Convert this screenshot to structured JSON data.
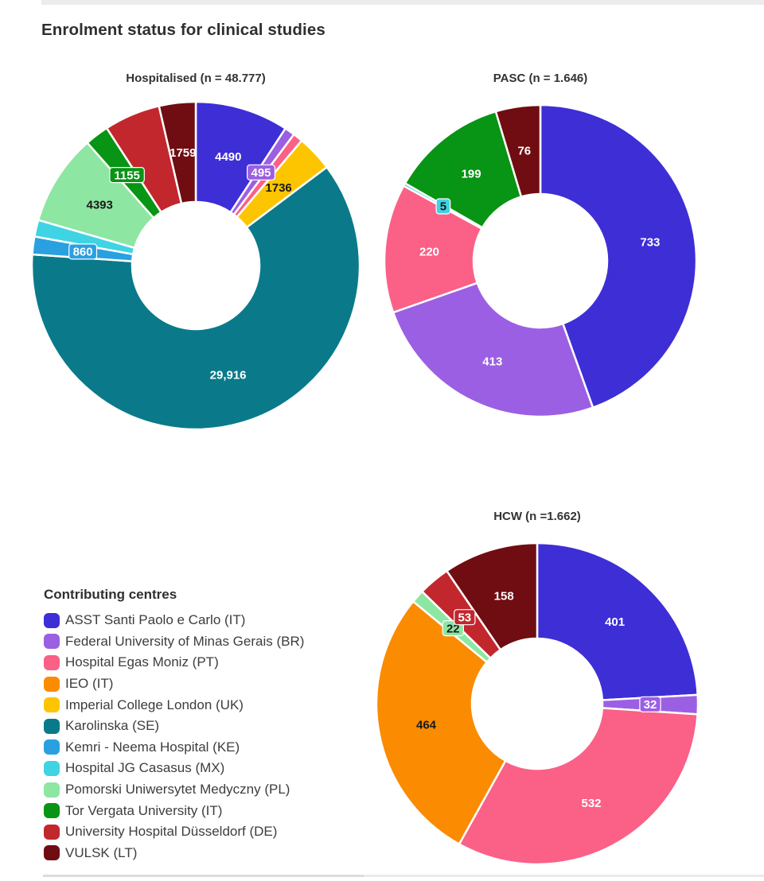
{
  "page": {
    "title": "Enrolment status for clinical studies"
  },
  "legend": {
    "title": "Contributing centres",
    "items": [
      {
        "label": "ASST Santi Paolo e Carlo (IT)",
        "color": "#3e2ed6"
      },
      {
        "label": "Federal University of Minas Gerais (BR)",
        "color": "#9b5fe3"
      },
      {
        "label": "Hospital Egas Moniz (PT)",
        "color": "#fb6087"
      },
      {
        "label": "IEO (IT)",
        "color": "#fb8b00"
      },
      {
        "label": "Imperial College London (UK)",
        "color": "#fdc500"
      },
      {
        "label": "Karolinska (SE)",
        "color": "#0a7a8a"
      },
      {
        "label": "Kemri - Neema Hospital (KE)",
        "color": "#29a0e0"
      },
      {
        "label": "Hospital JG Casasus (MX)",
        "color": "#3fd4e4"
      },
      {
        "label": "Pomorski Uniwersytet Medyczny (PL)",
        "color": "#8de6a2"
      },
      {
        "label": "Tor Vergata University (IT)",
        "color": "#089414"
      },
      {
        "label": "University Hospital Düsseldorf (DE)",
        "color": "#c2272d"
      },
      {
        "label": "VULSK (LT)",
        "color": "#700d12"
      }
    ]
  },
  "chart_data": [
    {
      "type": "pie",
      "donut": true,
      "title": "Hospitalised (n = 48.777)",
      "n_total": 48777,
      "legend_position": "bottom-left",
      "series": [
        {
          "name": "ASST Santi Paolo e Carlo (IT)",
          "value": 4490,
          "label": "4490",
          "label_color": "#ffffff"
        },
        {
          "name": "Federal University of Minas Gerais (BR)",
          "value": 495,
          "label": "495",
          "label_color": "#ffffff",
          "chip": true
        },
        {
          "name": "Hospital Egas Moniz (PT)",
          "value": 473,
          "label": "",
          "estimated": true
        },
        {
          "name": "Imperial College London (UK)",
          "value": 1736,
          "label": "1736",
          "label_color": "#1a1a1a"
        },
        {
          "name": "Karolinska (SE)",
          "value": 29916,
          "label": "29,916",
          "label_color": "#ffffff"
        },
        {
          "name": "Kemri - Neema Hospital (KE)",
          "value": 860,
          "label": "860",
          "label_color": "#ffffff",
          "chip": true
        },
        {
          "name": "Hospital JG Casasus (MX)",
          "value": 800,
          "label": "",
          "estimated": true
        },
        {
          "name": "Pomorski Uniwersytet Medyczny (PL)",
          "value": 4393,
          "label": "4393",
          "label_color": "#1a1a1a"
        },
        {
          "name": "Tor Vergata University (IT)",
          "value": 1155,
          "label": "1155",
          "label_color": "#ffffff",
          "chip": true
        },
        {
          "name": "University Hospital Düsseldorf (DE)",
          "value": 2700,
          "label": "",
          "estimated": true
        },
        {
          "name": "VULSK (LT)",
          "value": 1759,
          "label": "1759",
          "label_color": "#ffffff"
        }
      ]
    },
    {
      "type": "pie",
      "donut": true,
      "title": "PASC (n = 1.646)",
      "n_total": 1646,
      "series": [
        {
          "name": "ASST Santi Paolo e Carlo (IT)",
          "value": 733,
          "label": "733",
          "label_color": "#ffffff"
        },
        {
          "name": "Federal University of Minas Gerais (BR)",
          "value": 413,
          "label": "413",
          "label_color": "#ffffff"
        },
        {
          "name": "Hospital Egas Moniz (PT)",
          "value": 220,
          "label": "220",
          "label_color": "#ffffff"
        },
        {
          "name": "Hospital JG Casasus (MX)",
          "value": 5,
          "label": "5",
          "label_color": "#1a1a1a",
          "chip": true
        },
        {
          "name": "Tor Vergata University (IT)",
          "value": 199,
          "label": "199",
          "label_color": "#ffffff"
        },
        {
          "name": "VULSK (LT)",
          "value": 76,
          "label": "76",
          "label_color": "#ffffff"
        }
      ]
    },
    {
      "type": "pie",
      "donut": true,
      "title": "HCW (n =1.662)",
      "n_total": 1662,
      "series": [
        {
          "name": "ASST Santi Paolo e Carlo (IT)",
          "value": 401,
          "label": "401",
          "label_color": "#ffffff"
        },
        {
          "name": "Federal University of Minas Gerais (BR)",
          "value": 32,
          "label": "32",
          "label_color": "#ffffff",
          "chip": true
        },
        {
          "name": "Hospital Egas Moniz (PT)",
          "value": 532,
          "label": "532",
          "label_color": "#ffffff"
        },
        {
          "name": "IEO (IT)",
          "value": 464,
          "label": "464",
          "label_color": "#1a1a1a"
        },
        {
          "name": "Pomorski Uniwersytet Medyczny (PL)",
          "value": 22,
          "label": "22",
          "label_color": "#1a1a1a",
          "chip": true
        },
        {
          "name": "University Hospital Düsseldorf (DE)",
          "value": 53,
          "label": "53",
          "label_color": "#ffffff",
          "chip": true
        },
        {
          "name": "VULSK (LT)",
          "value": 158,
          "label": "158",
          "label_color": "#ffffff"
        }
      ]
    }
  ]
}
